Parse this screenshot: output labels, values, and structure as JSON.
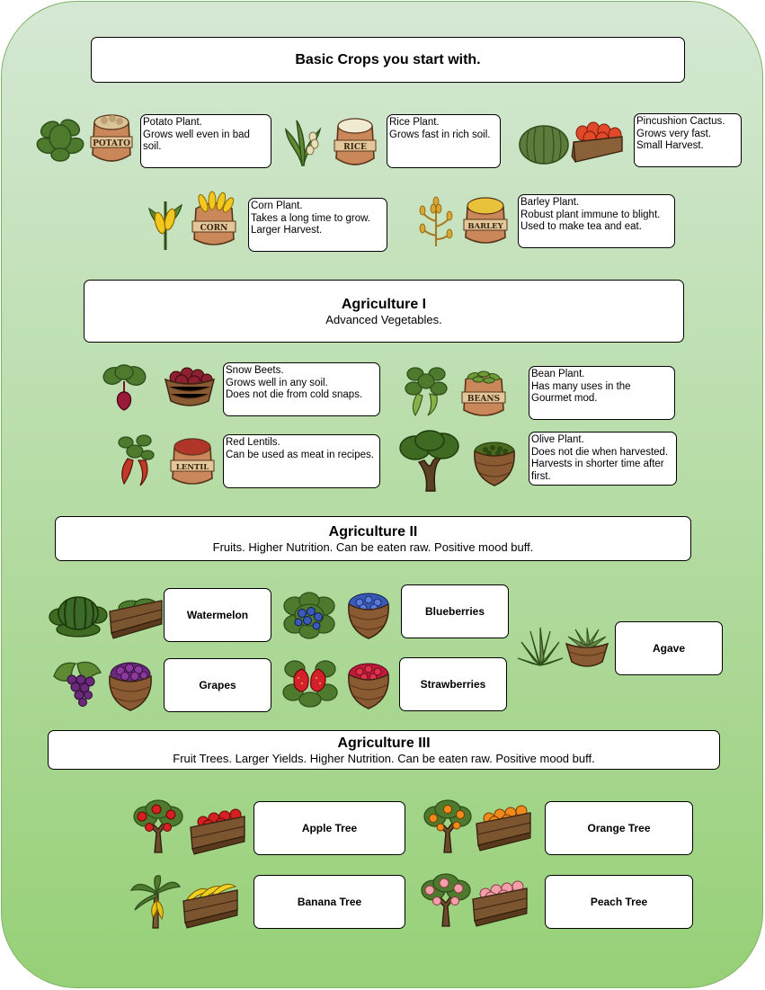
{
  "sections": {
    "basic": {
      "title": "Basic Crops you start with.",
      "subtitle": ""
    },
    "ag1": {
      "title": "Agriculture I",
      "subtitle": "Advanced Vegetables."
    },
    "ag2": {
      "title": "Agriculture II",
      "subtitle": "Fruits. Higher Nutrition. Can be eaten raw. Positive mood buff."
    },
    "ag3": {
      "title": "Agriculture III",
      "subtitle": "Fruit Trees. Larger Yields. Higher Nutrition. Can be eaten raw. Positive mood buff."
    }
  },
  "crops": {
    "potato": {
      "lines": [
        "Potato Plant.",
        "Grows well even in bad soil."
      ],
      "sack": "POTATO",
      "icons": [
        "potato-plant-icon",
        "potato-sack-icon"
      ]
    },
    "rice": {
      "lines": [
        "Rice Plant.",
        "Grows fast in rich soil."
      ],
      "sack": "RICE",
      "icons": [
        "rice-plant-icon",
        "rice-sack-icon"
      ]
    },
    "cactus": {
      "lines": [
        "Pincushion Cactus.",
        "Grows very fast.",
        "Small Harvest."
      ],
      "icons": [
        "cactus-icon",
        "cactus-fruit-crate-icon"
      ]
    },
    "corn": {
      "lines": [
        "Corn Plant.",
        "Takes a long time to grow.",
        "Larger Harvest."
      ],
      "sack": "CORN",
      "icons": [
        "corn-plant-icon",
        "corn-sack-icon"
      ]
    },
    "barley": {
      "lines": [
        "Barley Plant.",
        "Robust plant immune to blight.",
        "Used to make tea and eat."
      ],
      "sack": "BARLEY",
      "icons": [
        "barley-plant-icon",
        "barley-sack-icon"
      ]
    },
    "beets": {
      "lines": [
        "Snow Beets.",
        "Grows well in any soil.",
        "Does not die from cold snaps."
      ],
      "icons": [
        "beet-plant-icon",
        "beet-basket-icon"
      ]
    },
    "beans": {
      "lines": [
        "Bean Plant.",
        "Has many uses in the Gourmet mod."
      ],
      "sack": "BEANS",
      "icons": [
        "bean-plant-icon",
        "bean-sack-icon"
      ]
    },
    "lentils": {
      "lines": [
        "Red Lentils.",
        "Can be used as meat in recipes."
      ],
      "sack": "LENTIL",
      "icons": [
        "lentil-plant-icon",
        "lentil-sack-icon"
      ]
    },
    "olive": {
      "lines": [
        "Olive Plant.",
        "Does not die when harvested.",
        "Harvests in shorter time after first."
      ],
      "icons": [
        "olive-tree-icon",
        "olive-basket-icon"
      ]
    },
    "watermelon": {
      "label": "Watermelon",
      "icons": [
        "watermelon-plant-icon",
        "watermelon-crate-icon"
      ]
    },
    "blueberries": {
      "label": "Blueberries",
      "icons": [
        "blueberry-bush-icon",
        "blueberry-basket-icon"
      ]
    },
    "agave": {
      "label": "Agave",
      "icons": [
        "agave-plant-icon",
        "agave-basket-icon"
      ]
    },
    "grapes": {
      "label": "Grapes",
      "icons": [
        "grape-vine-icon",
        "grape-basket-icon"
      ]
    },
    "strawberries": {
      "label": "Strawberries",
      "icons": [
        "strawberry-plant-icon",
        "strawberry-basket-icon"
      ]
    },
    "apple": {
      "label": "Apple Tree",
      "icons": [
        "apple-tree-icon",
        "apple-crate-icon"
      ]
    },
    "orange": {
      "label": "Orange Tree",
      "icons": [
        "orange-tree-icon",
        "orange-crate-icon"
      ]
    },
    "banana": {
      "label": "Banana Tree",
      "icons": [
        "banana-tree-icon",
        "banana-crate-icon"
      ]
    },
    "peach": {
      "label": "Peach Tree",
      "icons": [
        "peach-tree-icon",
        "peach-crate-icon"
      ]
    }
  },
  "colors": {
    "panel_border": "#82b366",
    "panel_top": "#d5e8d4",
    "panel_bottom": "#97d077",
    "sack": "#c9875a",
    "sack_band": "#e3c79a",
    "basket": "#8a5a33",
    "crate": "#6b4a2b",
    "leaf": "#4e7a2e",
    "leaf_dark": "#2f4f1b",
    "trunk": "#6b4a2b"
  }
}
